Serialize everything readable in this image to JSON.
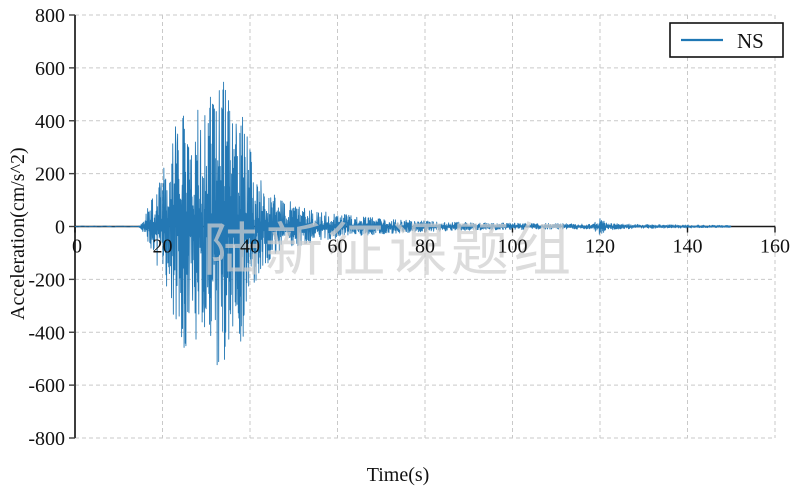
{
  "chart_data": {
    "type": "line",
    "title": "",
    "xlabel": "Time(s)",
    "ylabel": "Acceleration(cm/s^2)",
    "xlim": [
      0,
      160
    ],
    "ylim": [
      -800,
      800
    ],
    "xticks": [
      0,
      20,
      40,
      60,
      80,
      100,
      120,
      140,
      160
    ],
    "xtick_labels": [
      "0",
      "20",
      "40",
      "60",
      "80",
      "100",
      "120",
      "140",
      "160"
    ],
    "yticks": [
      800,
      600,
      400,
      200,
      0,
      -200,
      -400,
      -600,
      -800
    ],
    "ytick_labels": [
      "800",
      "600",
      "400",
      "200",
      "0",
      "-200",
      "-400",
      "-600",
      "-800"
    ],
    "grid": "dashed",
    "grid_color": "#c9c9c9",
    "legend_position": "upper right",
    "legend": [
      {
        "label": "NS",
        "color": "#1f77b4"
      }
    ],
    "series": [
      {
        "name": "NS",
        "color": "#2478b4",
        "description": "Earthquake ground-motion acceleration record, NS component. Quiet until ~15 s, strong-motion phase ~18-40 s with peak acceleration ~ +585 / -550 cm/s^2 near t = 33 s, gradual coda decay, small late burst ~ +/-45 cm/s^2 at t = 120 s, record ends at 150 s.",
        "signal_start_s": 14.5,
        "signal_end_s": 150,
        "peak_positive_cm_s2": 585,
        "peak_negative_cm_s2": -550,
        "peak_time_s": 33,
        "late_burst_time_s": 120,
        "late_burst_amp_cm_s2": 45,
        "envelope": {
          "t": [
            0,
            14.5,
            15,
            16,
            17,
            18,
            19,
            20,
            21,
            22,
            23,
            24,
            25,
            26,
            27,
            28,
            29,
            30,
            31,
            32,
            33,
            34,
            35,
            36,
            37,
            38,
            39,
            40,
            41,
            42,
            43,
            45,
            47,
            50,
            53,
            56,
            60,
            65,
            70,
            75,
            80,
            85,
            90,
            95,
            100,
            105,
            110,
            115,
            118,
            119.5,
            120,
            120.8,
            122,
            125,
            130,
            135,
            140,
            145,
            150
          ],
          "amp": [
            2,
            2,
            8,
            40,
            90,
            130,
            170,
            220,
            260,
            330,
            380,
            470,
            520,
            450,
            430,
            480,
            420,
            470,
            520,
            540,
            585,
            560,
            500,
            420,
            400,
            470,
            430,
            300,
            250,
            200,
            170,
            130,
            110,
            90,
            70,
            60,
            50,
            38,
            30,
            26,
            22,
            18,
            16,
            14,
            13,
            12,
            11,
            10,
            11,
            25,
            45,
            25,
            14,
            10,
            8,
            7,
            6,
            5,
            4
          ]
        }
      }
    ]
  },
  "watermark": {
    "text": "陆新征课题组"
  }
}
